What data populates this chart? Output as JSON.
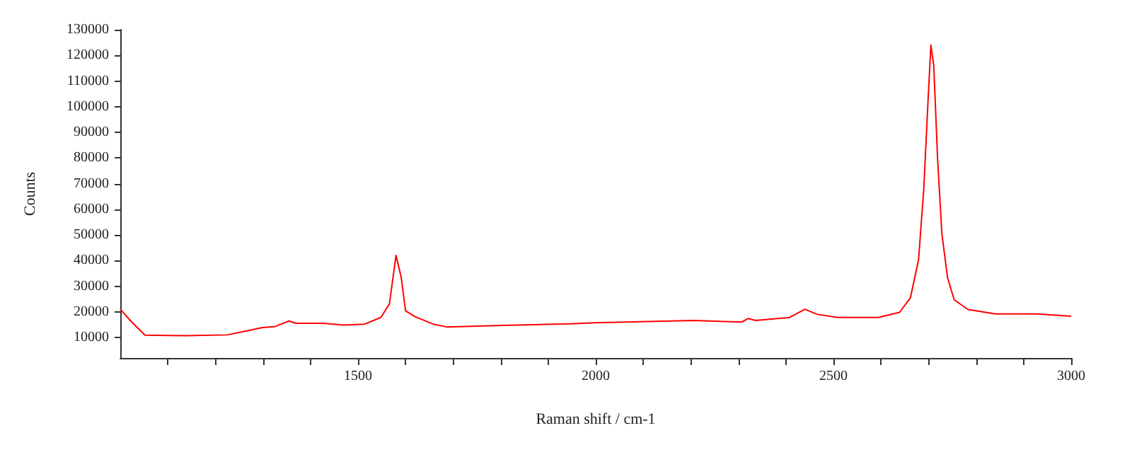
{
  "chart_data": {
    "type": "line",
    "xlabel": "Raman shift / cm-1",
    "ylabel": "Counts",
    "x": [
      1000,
      1023,
      1052,
      1138,
      1225,
      1268,
      1297,
      1326,
      1355,
      1369,
      1427,
      1470,
      1514,
      1548,
      1566,
      1580,
      1591,
      1600,
      1620,
      1658,
      1687,
      1802,
      1946,
      1998,
      2206,
      2307,
      2321,
      2336,
      2408,
      2440,
      2466,
      2509,
      2595,
      2639,
      2662,
      2679,
      2690,
      2699,
      2705,
      2711,
      2719,
      2728,
      2740,
      2754,
      2783,
      2841,
      2927,
      3000
    ],
    "series": [
      {
        "color": "#ff0000",
        "values": [
          21000,
          16200,
          10900,
          10700,
          11000,
          12600,
          13800,
          14300,
          16400,
          15500,
          15500,
          14800,
          15200,
          17800,
          23000,
          42000,
          33300,
          20400,
          18100,
          15200,
          14100,
          14700,
          15300,
          15700,
          16600,
          16000,
          17400,
          16600,
          17800,
          21000,
          19000,
          17800,
          17800,
          19800,
          25500,
          40200,
          67900,
          102400,
          124000,
          116000,
          80000,
          50600,
          33300,
          24700,
          20900,
          19200,
          19200,
          18300
        ]
      }
    ],
    "xlim": [
      1000,
      3000
    ],
    "xticks": [
      {
        "value": 1100,
        "label": null
      },
      {
        "value": 1200,
        "label": null
      },
      {
        "value": 1300,
        "label": null
      },
      {
        "value": 1400,
        "label": null
      },
      1500,
      {
        "value": 1600,
        "label": null
      },
      {
        "value": 1700,
        "label": null
      },
      {
        "value": 1800,
        "label": null
      },
      {
        "value": 1900,
        "label": null
      },
      2000,
      {
        "value": 2100,
        "label": null
      },
      {
        "value": 2200,
        "label": null
      },
      {
        "value": 2300,
        "label": null
      },
      {
        "value": 2400,
        "label": null
      },
      2500,
      {
        "value": 2600,
        "label": null
      },
      {
        "value": 2700,
        "label": null
      },
      {
        "value": 2800,
        "label": null
      },
      {
        "value": 2900,
        "label": null
      },
      3000
    ],
    "ylim": [
      2000,
      130000
    ],
    "yticks": [
      10000,
      20000,
      30000,
      40000,
      50000,
      60000,
      70000,
      80000,
      90000,
      100000,
      110000,
      120000,
      130000
    ],
    "grid": false,
    "marker": "none",
    "line_style": "solid"
  }
}
